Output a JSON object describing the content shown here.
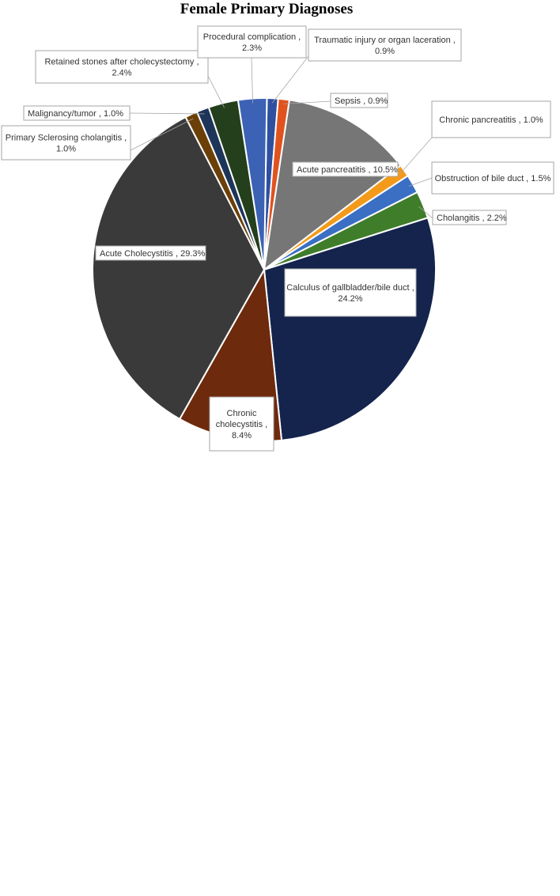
{
  "chart_data": {
    "type": "pie",
    "title": "Female Primary Diagnoses",
    "slices": [
      {
        "name": "Traumatic injury or organ laceration",
        "value": 0.9,
        "label_lines": [
          "Traumatic injury or organ laceration ,",
          "0.9%"
        ],
        "color": "#2f4f9f"
      },
      {
        "name": "Sepsis",
        "value": 0.9,
        "label_lines": [
          "Sepsis , 0.9%"
        ],
        "color": "#e0531f"
      },
      {
        "name": "Acute pancreatitis",
        "value": 10.5,
        "label_lines": [
          "Acute pancreatitis , 10.5%"
        ],
        "color": "#767676"
      },
      {
        "name": "Chronic pancreatitis",
        "value": 1.0,
        "label_lines": [
          "Chronic pancreatitis , 1.0%"
        ],
        "color": "#f39a1b"
      },
      {
        "name": "Obstruction of bile duct",
        "value": 1.5,
        "label_lines": [
          "Obstruction of bile duct , 1.5%"
        ],
        "color": "#3a6fc4"
      },
      {
        "name": "Cholangitis",
        "value": 2.2,
        "label_lines": [
          "Cholangitis , 2.2%"
        ],
        "color": "#3f7d2a"
      },
      {
        "name": "Calculus of gallbladder/bile duct",
        "value": 24.2,
        "label_lines": [
          "Calculus of gallbladder/bile duct ,",
          "24.2%"
        ],
        "color": "#14244d"
      },
      {
        "name": "Chronic cholecystitis",
        "value": 8.4,
        "label_lines": [
          "Chronic",
          "cholecystitis ,",
          "8.4%"
        ],
        "color": "#6e2a0c"
      },
      {
        "name": "Acute Cholecystitis",
        "value": 29.3,
        "label_lines": [
          "Acute Cholecystitis , 29.3%"
        ],
        "color": "#3a3a3a"
      },
      {
        "name": "Primary Sclerosing cholangitis",
        "value": 1.0,
        "label_lines": [
          "Primary Sclerosing cholangitis ,",
          "1.0%"
        ],
        "color": "#6b4008"
      },
      {
        "name": "Malignancy/tumor",
        "value": 1.0,
        "label_lines": [
          "Malignancy/tumor , 1.0%"
        ],
        "color": "#1d3559"
      },
      {
        "name": "Retained stones after cholecystectomy",
        "value": 2.4,
        "label_lines": [
          "Retained stones after cholecystectomy ,",
          "2.4%"
        ],
        "color": "#243f1c"
      },
      {
        "name": "Procedural complication",
        "value": 2.3,
        "label_lines": [
          "Procedural complication ,",
          "2.3%"
        ],
        "color": "#3c62b5"
      }
    ]
  }
}
